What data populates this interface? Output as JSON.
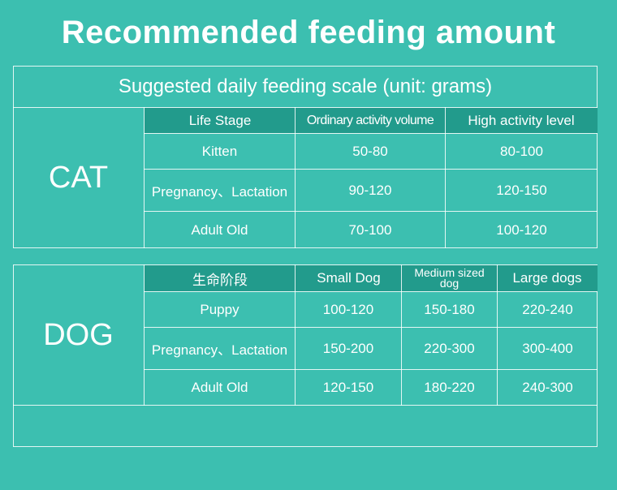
{
  "title": "Recommended feeding amount",
  "cat": {
    "subtitle": "Suggested daily feeding scale (unit: grams)",
    "animal": "CAT",
    "headers": [
      "Life Stage",
      "Ordinary activity volume",
      "High activity level"
    ],
    "rows": [
      [
        "Kitten",
        "50-80",
        "80-100"
      ],
      [
        "Pregnancy、Lactation",
        "90-120",
        "120-150"
      ],
      [
        "Adult Old",
        "70-100",
        "100-120"
      ]
    ]
  },
  "dog": {
    "animal": "DOG",
    "headers": [
      "生命阶段",
      "Small Dog",
      "Medium sized dog",
      "Large dogs"
    ],
    "rows": [
      [
        "Puppy",
        "100-120",
        "150-180",
        "220-240"
      ],
      [
        "Pregnancy、Lactation",
        "150-200",
        "220-300",
        "300-400"
      ],
      [
        "Adult Old",
        "120-150",
        "180-220",
        "240-300"
      ]
    ]
  },
  "colors": {
    "background": "#3cbfb0",
    "header_fill": "#229b8c",
    "text": "#ffffff"
  }
}
